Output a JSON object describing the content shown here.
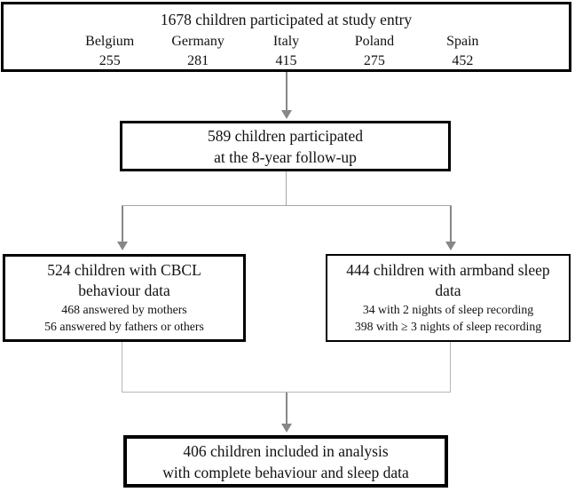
{
  "diagram": {
    "entry": {
      "title": "1678 children participated at study entry",
      "countries": [
        {
          "name": "Belgium",
          "count": "255"
        },
        {
          "name": "Germany",
          "count": "281"
        },
        {
          "name": "Italy",
          "count": "415"
        },
        {
          "name": "Poland",
          "count": "275"
        },
        {
          "name": "Spain",
          "count": "452"
        }
      ]
    },
    "followup": {
      "line1": "589 children participated",
      "line2": "at the 8-year follow-up"
    },
    "cbcl": {
      "title_line1": "524 children with CBCL",
      "title_line2": "behaviour data",
      "sub_line1": "468 answered by mothers",
      "sub_line2": "56 answered by fathers or others"
    },
    "sleep": {
      "title_line1": "444 children with armband sleep",
      "title_line2": "data",
      "sub_line1": "34 with 2 nights of sleep recording",
      "sub_line2": "398 with ≥ 3 nights of sleep recording"
    },
    "final": {
      "line1": "406 children included in analysis",
      "line2": "with complete behaviour and sleep data"
    },
    "colors": {
      "box_border": "#000000",
      "arrow_gray": "#878787",
      "connector_light_gray": "#a6a6a6",
      "merge_lighter_gray": "#b6b6b6",
      "text": "#111111",
      "background": "#ffffff"
    }
  }
}
